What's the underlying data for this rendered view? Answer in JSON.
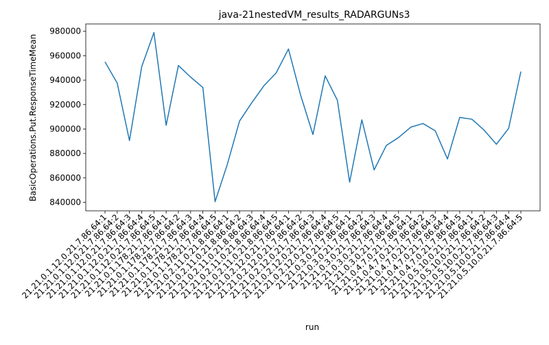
{
  "chart_data": {
    "type": "line",
    "title": "java-21nestedVM_results_RADARGUNs3",
    "xlabel": "run",
    "ylabel": "BasicOperations.Put.ResponseTimeMean",
    "ylim": [
      833000,
      986000
    ],
    "yticks": [
      840000,
      860000,
      880000,
      900000,
      920000,
      940000,
      960000,
      980000
    ],
    "grid": false,
    "line_color": "#1f77b4",
    "categories": [
      "21.21.0.1.12.0.21.7.86.64:1",
      "21.21.0.1.12.0.21.7.86.64:2",
      "21.21.0.1.12.0.21.7.86.64:3",
      "21.21.0.1.12.0.21.7.86.64:4",
      "21.21.0.1.12.0.21.7.86.64:5",
      "21.21.0.1.178.21.7.86.64:1",
      "21.21.0.1.178.21.7.86.64:2",
      "21.21.0.1.178.21.7.86.64:3",
      "21.21.0.1.178.21.7.86.64:4",
      "21.21.0.1.178.21.7.86.64:5",
      "21.21.0.2.11.0.21.8.86.64:1",
      "21.21.0.2.11.0.21.8.86.64:2",
      "21.21.0.2.11.0.21.8.86.64:3",
      "21.21.0.2.11.0.21.8.86.64:4",
      "21.21.0.2.11.0.21.8.86.64:5",
      "21.21.0.2.12.0.21.7.86.64:1",
      "21.21.0.2.12.0.21.7.86.64:2",
      "21.21.0.2.12.0.21.7.86.64:3",
      "21.21.0.2.12.0.21.7.86.64:4",
      "21.21.0.2.12.0.21.7.86.64:5",
      "21.21.0.3.0.21.7.86.64:1",
      "21.21.0.3.0.21.7.86.64:2",
      "21.21.0.3.0.21.7.86.64:3",
      "21.21.0.3.0.21.7.86.64:4",
      "21.21.0.3.0.21.7.86.64:5",
      "21.21.0.4.7.0.21.7.86.64:1",
      "21.21.0.4.7.0.21.7.86.64:2",
      "21.21.0.4.7.0.21.7.86.64:3",
      "21.21.0.4.7.0.21.7.86.64:4",
      "21.21.0.4.7.0.21.7.86.64:5",
      "21.21.0.5.10.0.21.7.86.64:1",
      "21.21.0.5.10.0.21.7.86.64:2",
      "21.21.0.5.10.0.21.7.86.64:3",
      "21.21.0.5.10.0.21.7.86.64:4",
      "21.21.0.5.10.0.21.7.86.64:5"
    ],
    "values": [
      955000,
      937500,
      890500,
      951000,
      979000,
      903000,
      952000,
      942500,
      934000,
      840500,
      871000,
      906500,
      921500,
      935500,
      946000,
      965500,
      927500,
      895500,
      943500,
      923500,
      856500,
      907500,
      866500,
      886500,
      893000,
      901500,
      904500,
      898500,
      875500,
      909500,
      908000,
      899000,
      887500,
      900500,
      947000
    ]
  }
}
